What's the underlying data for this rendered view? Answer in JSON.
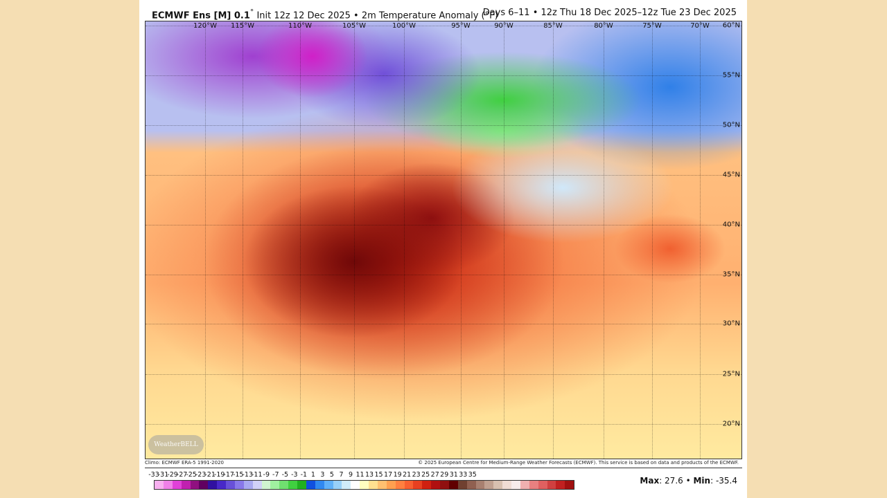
{
  "header": {
    "model": "ECMWF Ens [M] 0.1",
    "degree": "°",
    "init": " Init 12z 12 Dec 2025 • 2m Temperature Anomaly (°F)",
    "valid": "Days 6–11 • 12z Thu 18 Dec 2025–12z Tue 23 Dec 2025"
  },
  "map": {
    "longitudes": [
      "120°W",
      "115°W",
      "110°W",
      "105°W",
      "100°W",
      "95°W",
      "90°W",
      "85°W",
      "80°W",
      "75°W",
      "70°W"
    ],
    "latitudes": [
      "60°N",
      "55°N",
      "50°N",
      "45°N",
      "40°N",
      "35°N",
      "30°N",
      "25°N",
      "20°N"
    ],
    "logo_text": "WeatherBELL"
  },
  "footer": {
    "climo": "Climo: ECMWF ERA-5 1991-2020",
    "copyright": "© 2025 European Centre for Medium-Range Weather Forecasts (ECMWF). This service is based on data and products of the ECMWF.",
    "max_label": "Max",
    "max_value": ": 27.6 • ",
    "min_label": "Min",
    "min_value": ": -35.4"
  },
  "colorbar": {
    "ticks": [
      "-33",
      "-31",
      "-29",
      "-27",
      "-25",
      "-23",
      "-21",
      "-19",
      "-17",
      "-15",
      "-13",
      "-11",
      "-9",
      "-7",
      "-5",
      "-3",
      "-1",
      "1",
      "3",
      "5",
      "7",
      "9",
      "11",
      "13",
      "15",
      "17",
      "19",
      "21",
      "23",
      "25",
      "27",
      "29",
      "31",
      "33",
      "35"
    ],
    "colors": [
      "#f8b0f0",
      "#f080e8",
      "#e040d8",
      "#c020b0",
      "#901080",
      "#600060",
      "#3010a0",
      "#4828c8",
      "#6850d8",
      "#8878e8",
      "#a8a8f0",
      "#d0d0f8",
      "#d0f4d0",
      "#a0f0a0",
      "#70e070",
      "#40d040",
      "#20b020",
      "#1050e0",
      "#3088f0",
      "#60b0f8",
      "#98d0f8",
      "#d0ecfa",
      "#ffffff",
      "#ffffc0",
      "#ffe090",
      "#ffc070",
      "#ffa050",
      "#ff8040",
      "#f86030",
      "#e84020",
      "#d02010",
      "#b01010",
      "#901010",
      "#600000",
      "#704030",
      "#906050",
      "#a88070",
      "#c0a090",
      "#d8c0b0",
      "#f0dcd4",
      "#f8ecec",
      "#f0b0b0",
      "#e88080",
      "#e06060",
      "#d04040",
      "#c02020",
      "#a01010"
    ]
  }
}
